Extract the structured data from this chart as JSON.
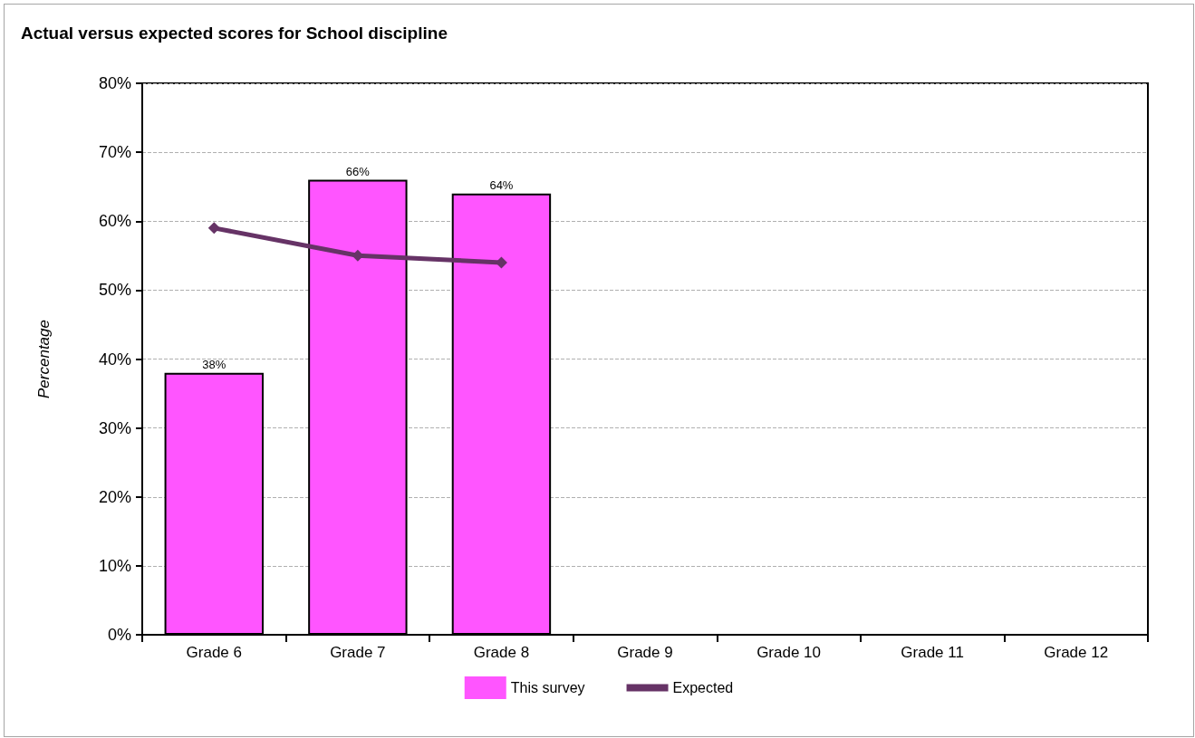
{
  "chart_data": {
    "type": "bar",
    "title": "Actual versus expected scores for School discipline",
    "ylabel": "Percentage",
    "categories": [
      "Grade 6",
      "Grade 7",
      "Grade 8",
      "Grade 9",
      "Grade 10",
      "Grade 11",
      "Grade 12"
    ],
    "series": [
      {
        "name": "This survey",
        "color": "#ff55ff",
        "values": [
          38,
          66,
          64,
          null,
          null,
          null,
          null
        ],
        "value_labels": [
          "38%",
          "66%",
          "64%",
          null,
          null,
          null,
          null
        ]
      },
      {
        "name": "Expected",
        "type": "line",
        "color": "#663366",
        "values": [
          59,
          55,
          54,
          null,
          null,
          null,
          null
        ]
      }
    ],
    "ylim": [
      0,
      80
    ],
    "yticks": [
      {
        "value": 0,
        "label": "0%"
      },
      {
        "value": 10,
        "label": "10%"
      },
      {
        "value": 20,
        "label": "20%"
      },
      {
        "value": 30,
        "label": "30%"
      },
      {
        "value": 40,
        "label": "40%"
      },
      {
        "value": 50,
        "label": "50%"
      },
      {
        "value": 60,
        "label": "60%"
      },
      {
        "value": 70,
        "label": "70%"
      },
      {
        "value": 80,
        "label": "80%"
      }
    ],
    "grid": "y",
    "legend": "bottom",
    "marker": "diamond",
    "line_style": "solid"
  }
}
